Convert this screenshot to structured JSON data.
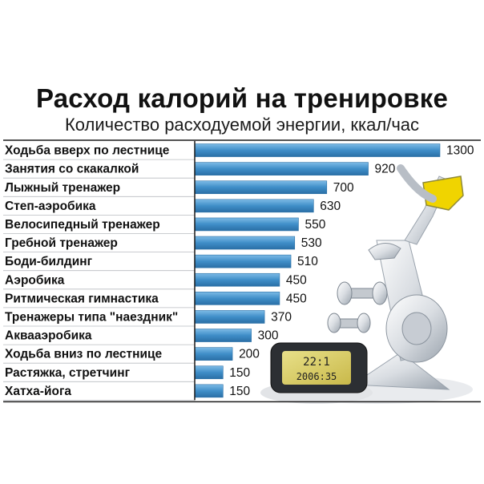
{
  "chart_data": {
    "type": "bar",
    "orientation": "horizontal",
    "title": "Расход калорий на тренировке",
    "subtitle": "Количество расходуемой энергии, ккал/час",
    "categories": [
      "Ходьба вверх по лестнице",
      "Занятия со скакалкой",
      "Лыжный тренажер",
      "Степ-аэробика",
      "Велосипедный тренажер",
      "Гребной тренажер",
      "Боди-билдинг",
      "Аэробика",
      "Ритмическая гимнастика",
      "Тренажеры типа \"наездник\"",
      "Аквааэробика",
      "Ходьба вниз по лестнице",
      "Растяжка, стретчинг",
      "Хатха-йога"
    ],
    "values": [
      1300,
      920,
      700,
      630,
      550,
      530,
      510,
      450,
      450,
      370,
      300,
      200,
      150,
      150
    ],
    "value_labels": [
      "1300",
      "920",
      "700",
      "630",
      "550",
      "530",
      "510",
      "450",
      "450",
      "370",
      "300",
      "200",
      "150",
      "150"
    ],
    "xlim": [
      0,
      1300
    ],
    "grid": false,
    "legend": "none",
    "colors": {
      "bar": "#3f8ec8",
      "bar_light": "#7dbbe6",
      "bar_dark": "#2a6fa6",
      "divider": "#1a1a1a"
    }
  },
  "decor": {
    "illustration": "exercise-bike-with-dumbbells",
    "display_readout": [
      "22:1",
      "2006:35"
    ]
  }
}
